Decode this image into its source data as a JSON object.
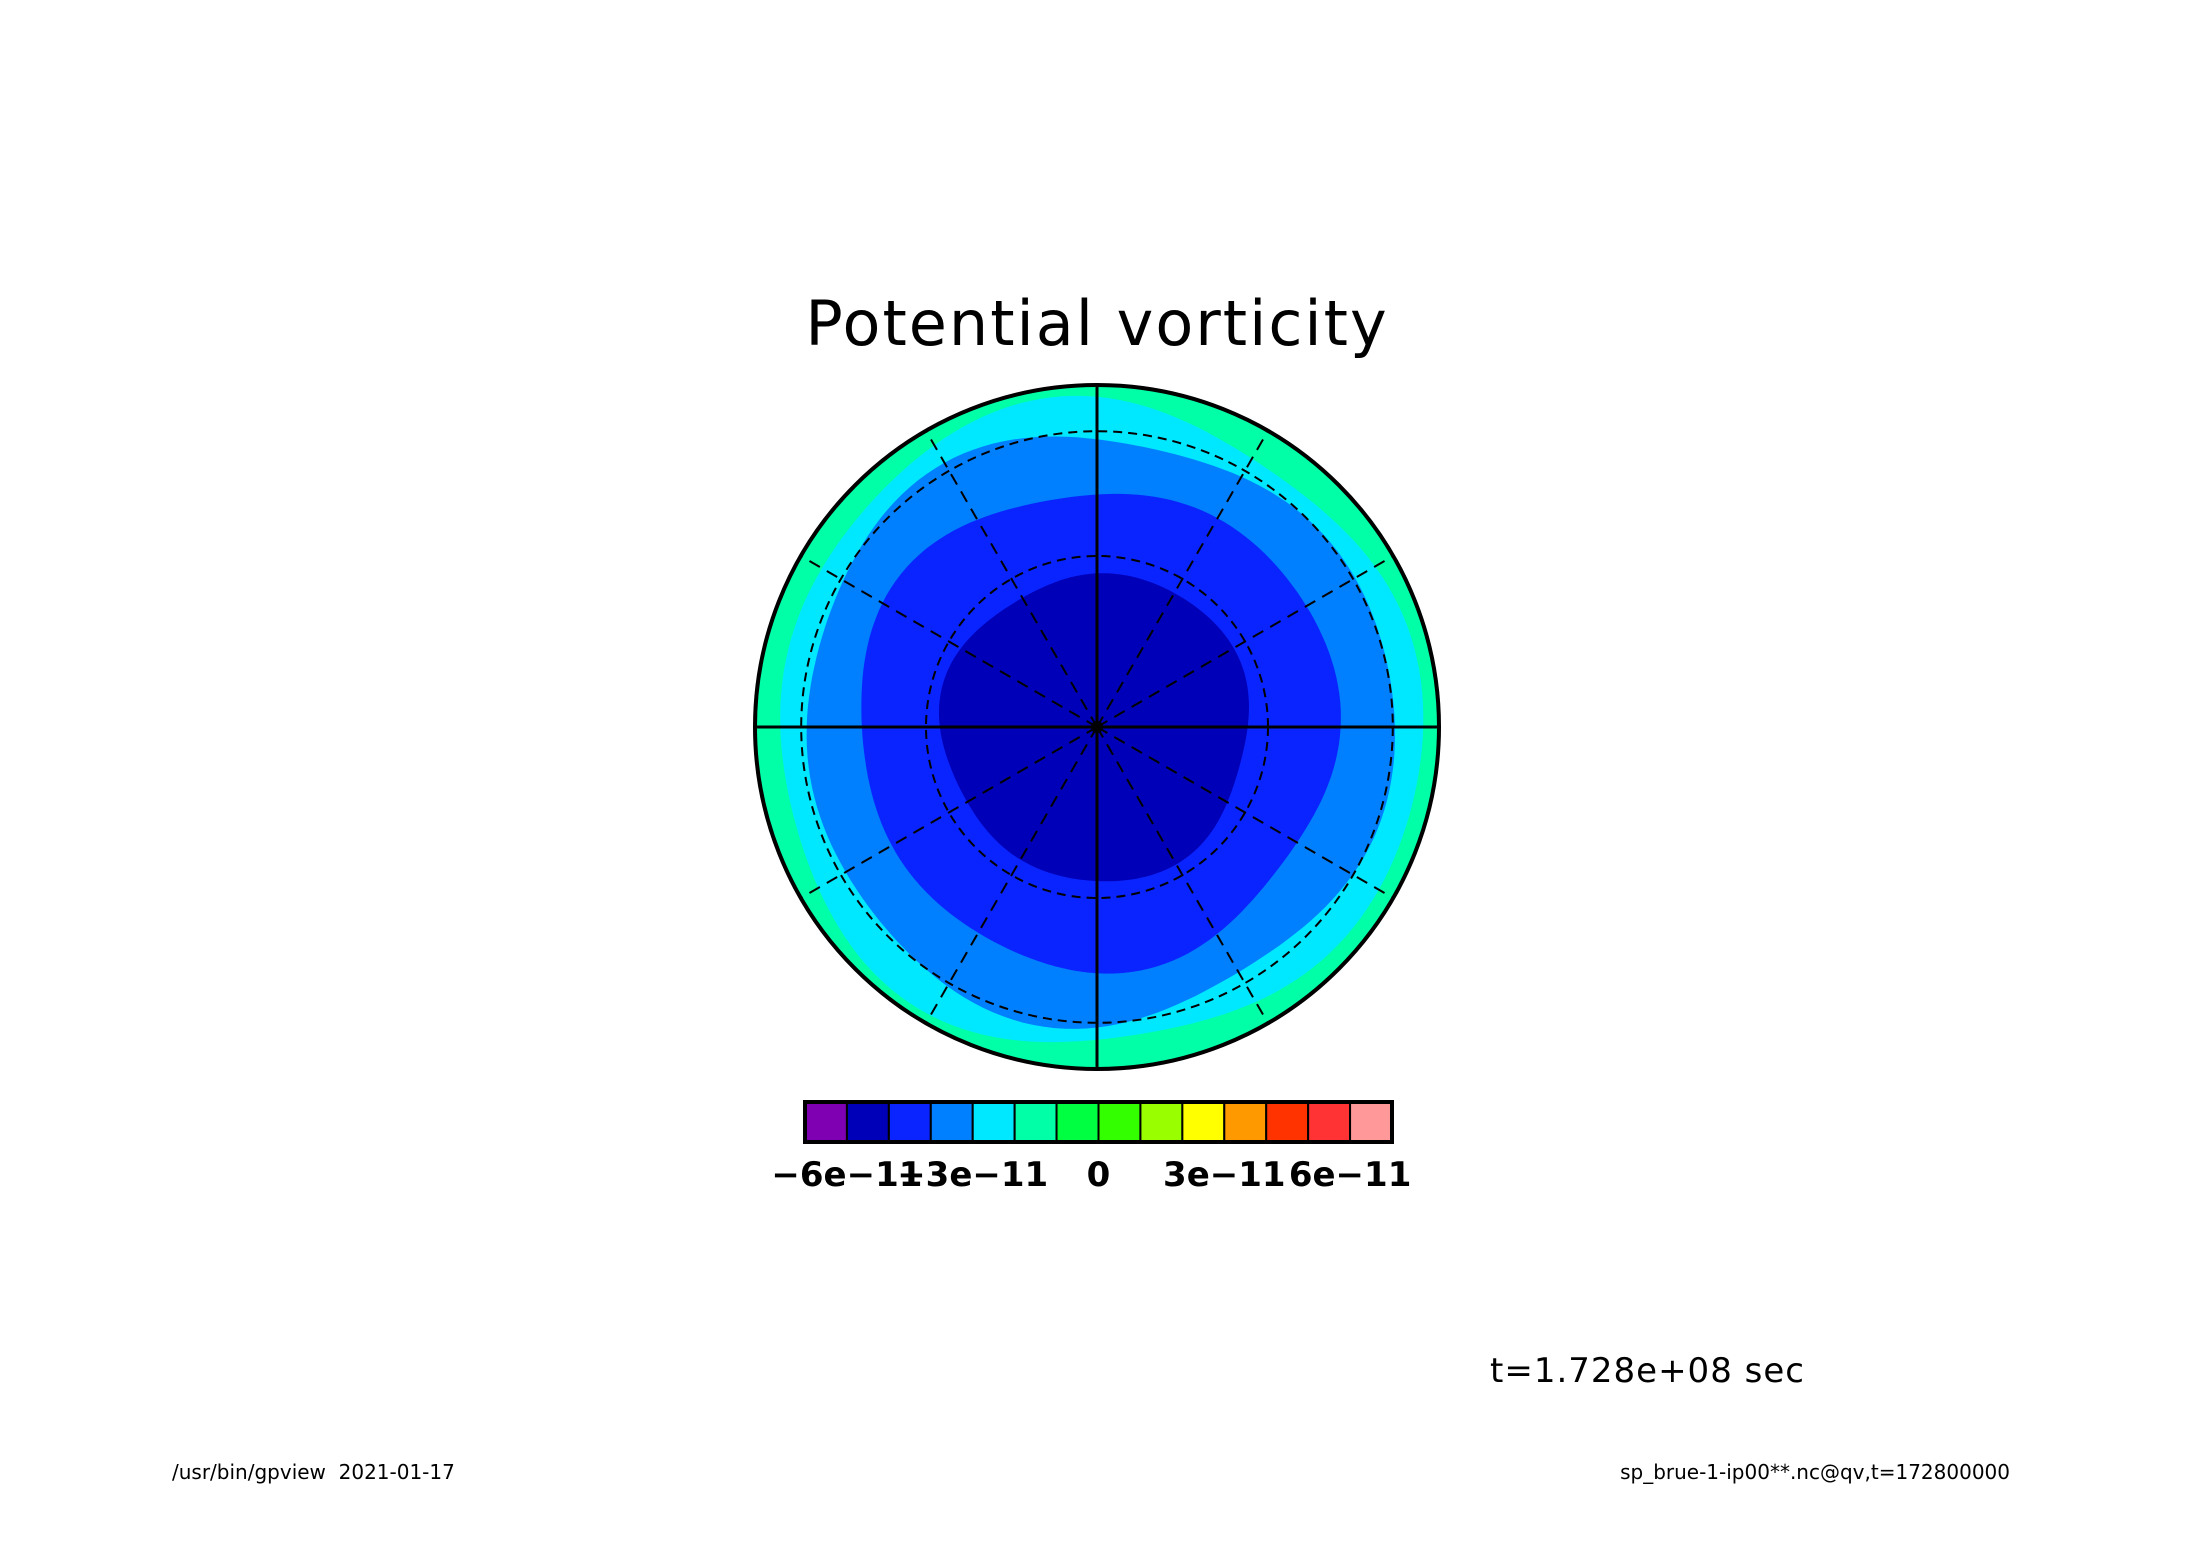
{
  "chart_data": {
    "type": "heatmap",
    "projection": "polar-stereographic",
    "title": "Potential vorticity",
    "xlabel": "",
    "ylabel": "",
    "levels": [
      -7e-11,
      -6e-11,
      -5e-11,
      -4e-11,
      -3e-11,
      -2e-11,
      -1e-11,
      0,
      1e-11,
      2e-11,
      3e-11,
      4e-11,
      5e-11,
      6e-11,
      7e-11
    ],
    "colorbar": {
      "colors": [
        "#7f00b3",
        "#0000b8",
        "#0a24ff",
        "#0080ff",
        "#00e8ff",
        "#00ffa6",
        "#00ff40",
        "#33ff00",
        "#99ff00",
        "#ffff00",
        "#ff9900",
        "#ff3300",
        "#ff3333",
        "#ff9999"
      ],
      "tick_labels": [
        "−6e−11",
        "−3e−11",
        "0",
        "3e−11",
        "6e−11"
      ],
      "tick_values": [
        -6e-11,
        -3e-11,
        0,
        3e-11,
        6e-11
      ]
    },
    "field_bands": [
      {
        "range": [
          -6e-11,
          -5e-11
        ],
        "color": "#0000b8",
        "radius_fraction": 0.45
      },
      {
        "range": [
          -5e-11,
          -4e-11
        ],
        "color": "#0a24ff",
        "radius_fraction": 0.7
      },
      {
        "range": [
          -4e-11,
          -3e-11
        ],
        "color": "#0080ff",
        "radius_fraction": 0.86
      },
      {
        "range": [
          -3e-11,
          -2e-11
        ],
        "color": "#00e8ff",
        "radius_fraction": 0.94
      },
      {
        "range": [
          -2e-11,
          -1e-11
        ],
        "color": "#00ffa6",
        "radius_fraction": 1.0
      }
    ],
    "grid": true,
    "meridian_spacing_deg": 30,
    "latitude_circles_fraction": [
      0.5,
      0.865
    ]
  },
  "annotation": {
    "time": "t=1.728e+08 sec"
  },
  "footer": {
    "left": "/usr/bin/gpview  2021-01-17",
    "right": "sp_brue-1-ip00**.nc@qv,t=172800000"
  }
}
